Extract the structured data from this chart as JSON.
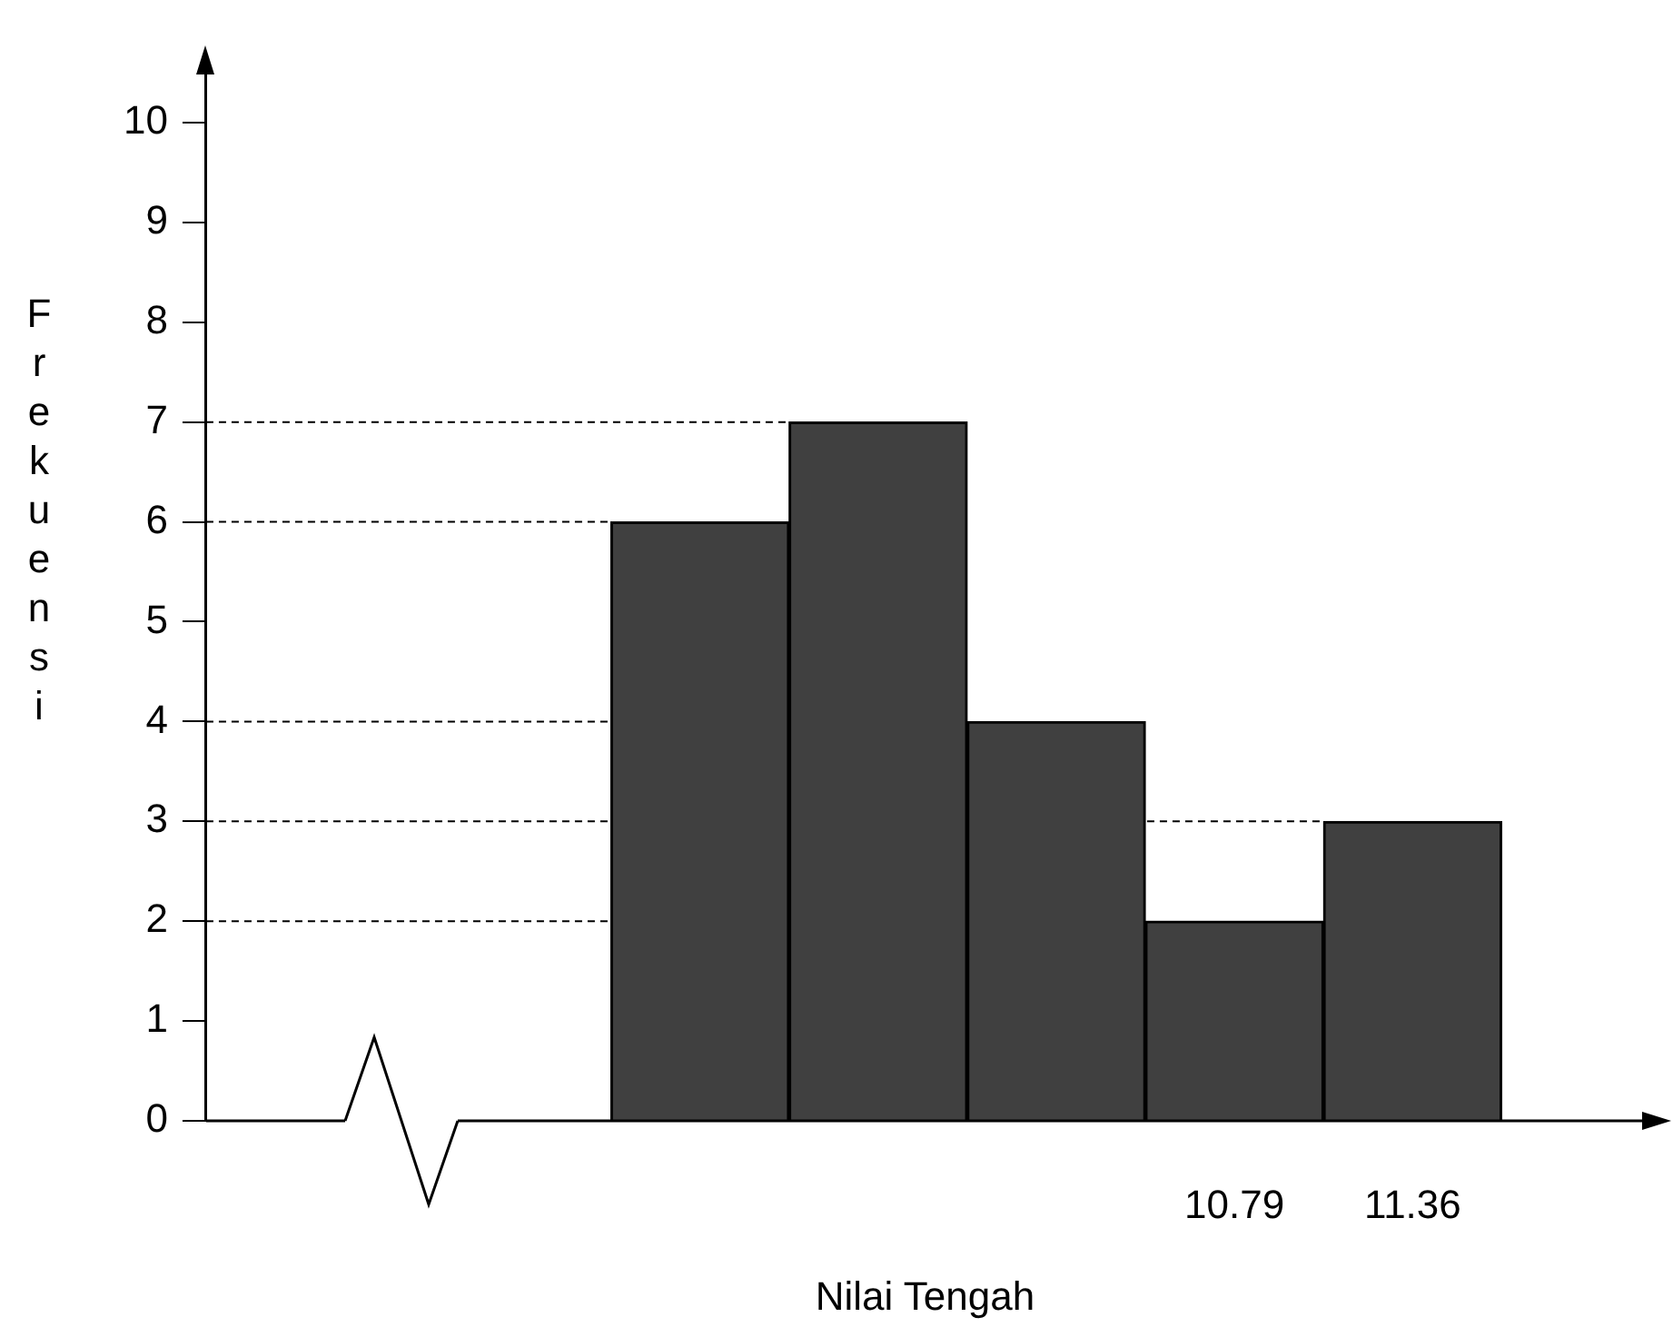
{
  "chart_data": {
    "type": "bar",
    "xlabel": "Nilai Tengah",
    "ylabel": "Frekuensi",
    "x": [
      9.08,
      9.65,
      10.22,
      10.79,
      11.36
    ],
    "values": [
      6,
      7,
      4,
      2,
      3
    ],
    "color": "#404040",
    "xlim": [
      7.5,
      12.1
    ],
    "xticks": [
      10.79,
      11.36
    ],
    "ylim": [
      0,
      10.5
    ],
    "yticks": [
      0,
      1,
      2,
      3,
      4,
      5,
      6,
      7,
      8,
      9,
      10
    ],
    "ref_lines": [
      {
        "axis": "y",
        "value": 2,
        "line_style": "dashed",
        "color": "#000000"
      },
      {
        "axis": "y",
        "value": 3,
        "line_style": "dashed",
        "color": "#000000"
      },
      {
        "axis": "y",
        "value": 4,
        "line_style": "dashed",
        "color": "#000000"
      },
      {
        "axis": "y",
        "value": 6,
        "line_style": "dashed",
        "color": "#000000"
      },
      {
        "axis": "y",
        "value": 7,
        "line_style": "dashed",
        "color": "#000000"
      }
    ]
  }
}
